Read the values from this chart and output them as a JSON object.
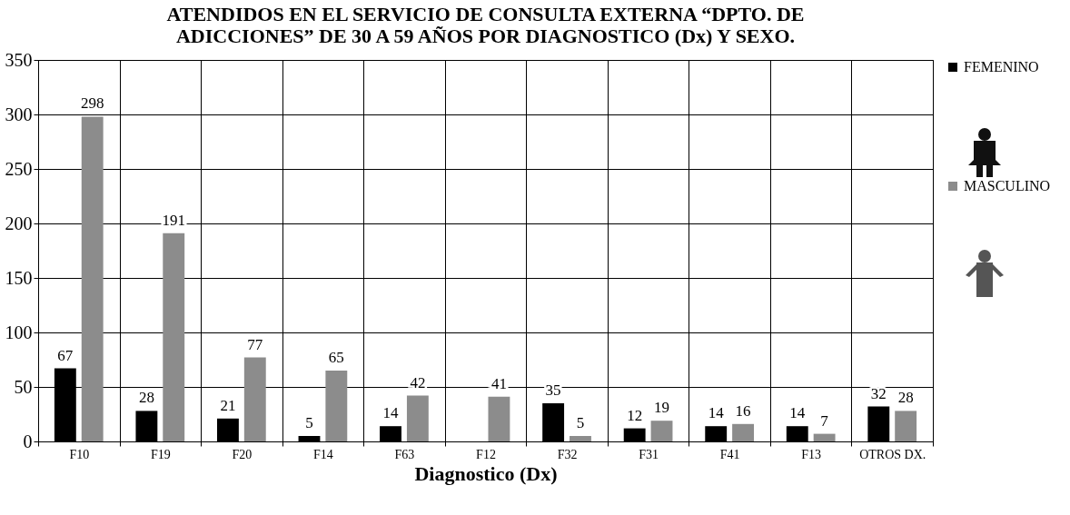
{
  "chart_data": {
    "type": "bar",
    "title": [
      "ATENDIDOS EN EL SERVICIO DE CONSULTA EXTERNA “DPTO. DE",
      "ADICCIONES” DE 30 A 59 AÑOS POR DIAGNOSTICO (Dx) Y SEXO."
    ],
    "xlabel": "Diagnostico (Dx)",
    "categories": [
      "F10",
      "F19",
      "F20",
      "F14",
      "F63",
      "F12",
      "F32",
      "F31",
      "F41",
      "F13",
      "OTROS DX."
    ],
    "series": [
      {
        "name": "FEMENINO",
        "color": "#000000",
        "values": [
          67,
          28,
          21,
          5,
          14,
          null,
          35,
          12,
          14,
          14,
          32
        ]
      },
      {
        "name": "MASCULINO",
        "color": "#8c8c8c",
        "values": [
          298,
          191,
          77,
          65,
          42,
          41,
          5,
          19,
          16,
          7,
          28
        ]
      }
    ],
    "ylim": [
      0,
      350
    ],
    "yticks": [
      0,
      50,
      100,
      150,
      200,
      250,
      300,
      350
    ],
    "grid": true,
    "legend": "right",
    "data_labels": true
  }
}
